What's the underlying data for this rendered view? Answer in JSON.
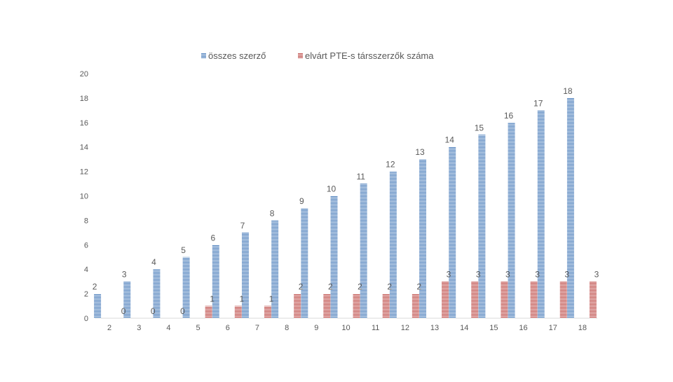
{
  "chart_data": {
    "type": "bar",
    "title": "",
    "xlabel": "",
    "ylabel": "",
    "categories": [
      "2",
      "3",
      "4",
      "5",
      "6",
      "7",
      "8",
      "9",
      "10",
      "11",
      "12",
      "13",
      "14",
      "15",
      "16",
      "17",
      "18"
    ],
    "series": [
      {
        "name": "összes szerző",
        "color": "#4F81BD",
        "values": [
          2,
          3,
          4,
          5,
          6,
          7,
          8,
          9,
          10,
          11,
          12,
          13,
          14,
          15,
          16,
          17,
          18
        ]
      },
      {
        "name": "elvárt PTE-s társszerzők száma",
        "color": "#C0504D",
        "values": [
          0,
          0,
          0,
          1,
          1,
          1,
          2,
          2,
          2,
          2,
          2,
          3,
          3,
          3,
          3,
          3,
          3
        ]
      }
    ],
    "ylim": [
      0,
      20
    ],
    "yticks": [
      0,
      2,
      4,
      6,
      8,
      10,
      12,
      14,
      16,
      18,
      20
    ],
    "grid": false,
    "legend_position": "top",
    "data_labels": true
  }
}
